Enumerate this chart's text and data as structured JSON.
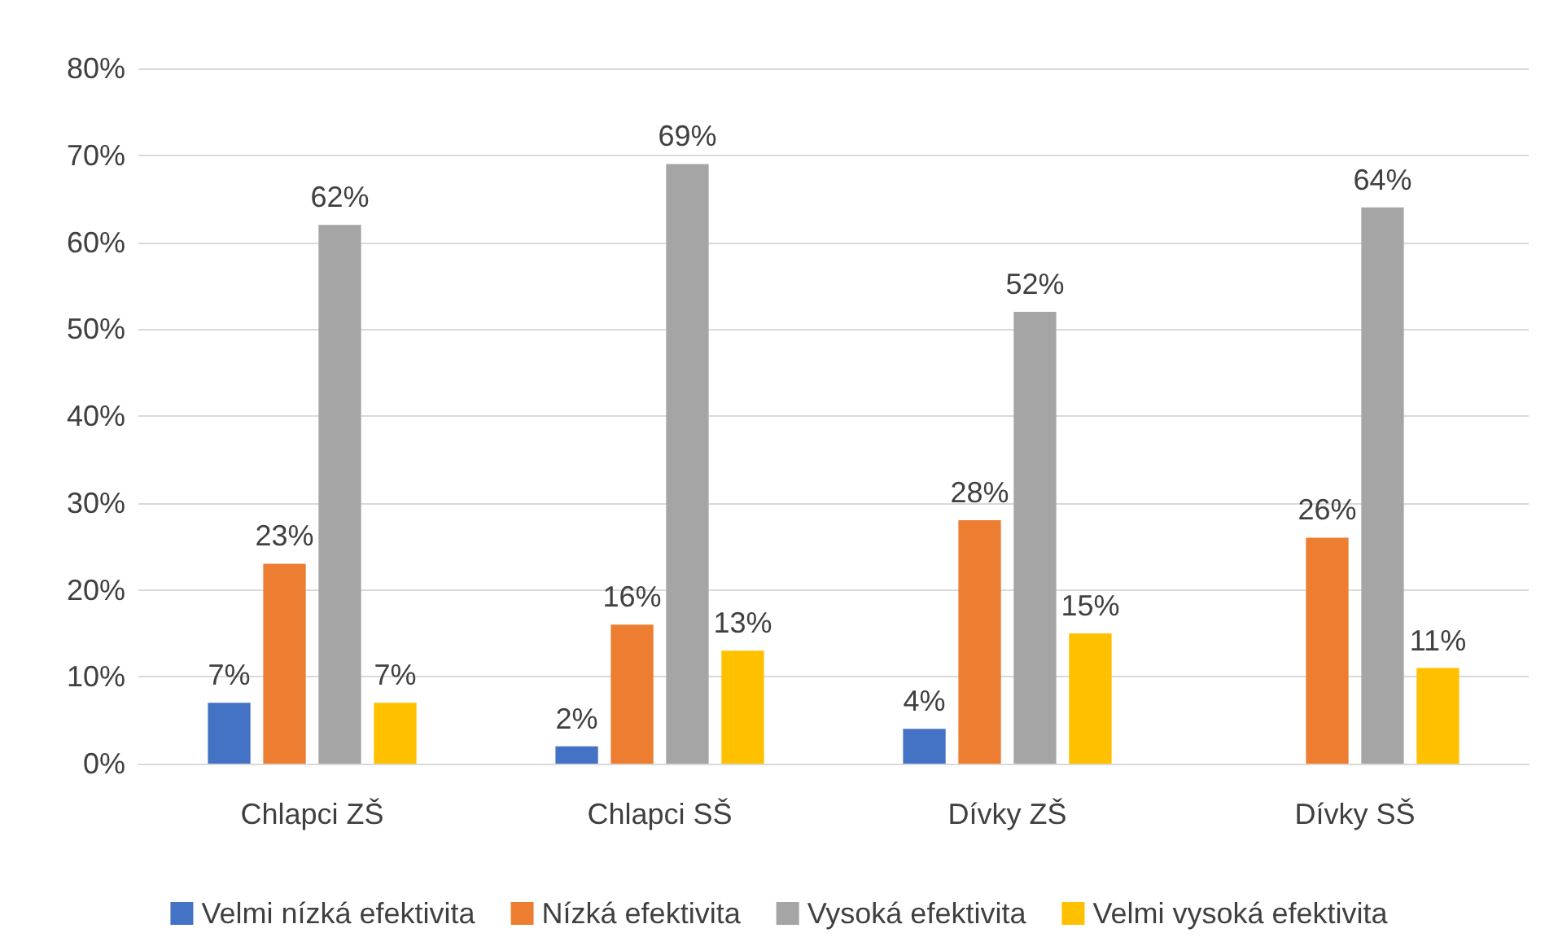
{
  "chart_data": {
    "type": "bar",
    "categories": [
      "Chlapci ZŠ",
      "Chlapci SŠ",
      "Dívky ZŠ",
      "Dívky SŠ"
    ],
    "series": [
      {
        "name": "Velmi nízká efektivita",
        "color": "#4472c4",
        "values": [
          7,
          2,
          4,
          null
        ],
        "value_labels": [
          "7%",
          "2%",
          "4%",
          null
        ]
      },
      {
        "name": "Nízká efektivita",
        "color": "#ed7d31",
        "values": [
          23,
          16,
          28,
          26
        ],
        "value_labels": [
          "23%",
          "16%",
          "28%",
          "26%"
        ]
      },
      {
        "name": "Vysoká efektivita",
        "color": "#a5a5a5",
        "values": [
          62,
          69,
          52,
          64
        ],
        "value_labels": [
          "62%",
          "69%",
          "52%",
          "64%"
        ]
      },
      {
        "name": "Velmi vysoká efektivita",
        "color": "#ffc000",
        "values": [
          7,
          13,
          15,
          11
        ],
        "value_labels": [
          "7%",
          "13%",
          "15%",
          "11%"
        ]
      }
    ],
    "ylim": [
      0,
      80
    ],
    "yticks": [
      {
        "value": 0,
        "label": "0%"
      },
      {
        "value": 10,
        "label": "10%"
      },
      {
        "value": 20,
        "label": "20%"
      },
      {
        "value": 30,
        "label": "30%"
      },
      {
        "value": 40,
        "label": "40%"
      },
      {
        "value": 50,
        "label": "50%"
      },
      {
        "value": 60,
        "label": "60%"
      },
      {
        "value": 70,
        "label": "70%"
      },
      {
        "value": 80,
        "label": "80%"
      }
    ],
    "grid": "y",
    "legend": "bottom"
  }
}
